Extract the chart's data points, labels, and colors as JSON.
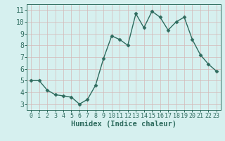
{
  "x": [
    0,
    1,
    2,
    3,
    4,
    5,
    6,
    7,
    8,
    9,
    10,
    11,
    12,
    13,
    14,
    15,
    16,
    17,
    18,
    19,
    20,
    21,
    22,
    23
  ],
  "y": [
    5.0,
    5.0,
    4.2,
    3.8,
    3.7,
    3.6,
    3.0,
    3.4,
    4.6,
    6.9,
    8.8,
    8.5,
    8.0,
    10.7,
    9.5,
    10.9,
    10.4,
    9.3,
    10.0,
    10.4,
    8.5,
    7.2,
    6.4,
    5.8
  ],
  "line_color": "#2e6b5e",
  "marker": "D",
  "marker_size": 2.5,
  "bg_color": "#d6f0ef",
  "grid_color": "#c8dedd",
  "xlabel": "Humidex (Indice chaleur)",
  "ylim": [
    2.5,
    11.5
  ],
  "xlim": [
    -0.5,
    23.5
  ],
  "yticks": [
    3,
    4,
    5,
    6,
    7,
    8,
    9,
    10,
    11
  ],
  "xticks": [
    0,
    1,
    2,
    3,
    4,
    5,
    6,
    7,
    8,
    9,
    10,
    11,
    12,
    13,
    14,
    15,
    16,
    17,
    18,
    19,
    20,
    21,
    22,
    23
  ],
  "tick_color": "#2e6b5e",
  "xlabel_fontsize": 7.5,
  "tick_fontsize_x": 6,
  "tick_fontsize_y": 7,
  "line_width": 1.0,
  "spine_color": "#2e6b5e"
}
